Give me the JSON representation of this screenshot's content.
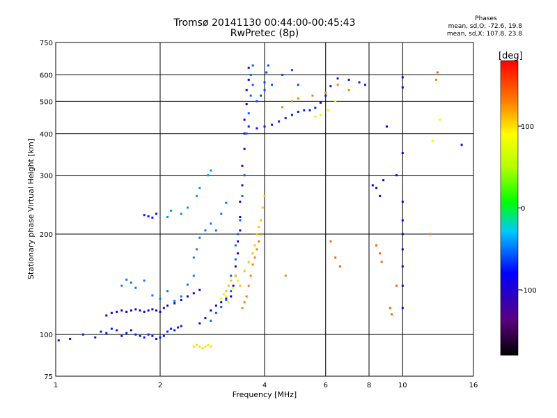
{
  "chart_data": {
    "type": "scatter",
    "title": "Tromsø 20141130 00:44:00-00:45:43",
    "subtitle": "RwPretec (8p)",
    "xlabel": "Frequency [MHz]",
    "ylabel": "Stationary phase Virtual Height [km]",
    "x_scale": "log",
    "y_scale": "log",
    "xlim": [
      1,
      16
    ],
    "ylim": [
      75,
      750
    ],
    "xticks": [
      1,
      2,
      4,
      6,
      8,
      10,
      16
    ],
    "yticks": [
      75,
      100,
      200,
      300,
      400,
      500,
      600,
      750
    ],
    "grid": true,
    "legend": {
      "title": "Phases",
      "lines": [
        "mean, sd,O: -72.6, 19.8",
        "mean, sd,X: 107.8, 23.8"
      ]
    },
    "colorbar": {
      "label": "[deg]",
      "range": [
        -180,
        180
      ],
      "ticks": [
        100,
        0,
        -100
      ],
      "colormap": "rainbow (black-purple-blue-cyan-green-yellow-red)"
    },
    "series": [
      {
        "color_value": -95,
        "points": [
          [
            1.02,
            96
          ],
          [
            1.1,
            97
          ],
          [
            1.2,
            100
          ],
          [
            1.3,
            98
          ],
          [
            1.35,
            102
          ],
          [
            1.4,
            101
          ],
          [
            1.45,
            104
          ],
          [
            1.5,
            103
          ],
          [
            1.55,
            99
          ],
          [
            1.6,
            101
          ],
          [
            1.65,
            103
          ],
          [
            1.7,
            100
          ],
          [
            1.75,
            99
          ],
          [
            1.8,
            98
          ],
          [
            1.85,
            100
          ],
          [
            1.9,
            99
          ],
          [
            1.95,
            97
          ],
          [
            2.0,
            98
          ],
          [
            2.05,
            99
          ],
          [
            2.1,
            102
          ],
          [
            2.15,
            104
          ],
          [
            2.2,
            103
          ],
          [
            2.25,
            105
          ],
          [
            2.3,
            106
          ]
        ]
      },
      {
        "color_value": -110,
        "points": [
          [
            1.4,
            114
          ],
          [
            1.45,
            116
          ],
          [
            1.5,
            117
          ],
          [
            1.55,
            118
          ],
          [
            1.6,
            117
          ],
          [
            1.65,
            118
          ],
          [
            1.7,
            119
          ],
          [
            1.75,
            118
          ],
          [
            1.8,
            117
          ],
          [
            1.85,
            118
          ],
          [
            1.9,
            119
          ],
          [
            1.95,
            118
          ],
          [
            2.0,
            117
          ],
          [
            2.05,
            120
          ],
          [
            2.1,
            122
          ],
          [
            2.2,
            124
          ],
          [
            2.3,
            127
          ],
          [
            2.4,
            130
          ],
          [
            2.5,
            133
          ],
          [
            2.6,
            136
          ]
        ]
      },
      {
        "color_value": -75,
        "points": [
          [
            1.55,
            140
          ],
          [
            1.6,
            146
          ],
          [
            1.65,
            143
          ],
          [
            1.7,
            138
          ],
          [
            1.8,
            145
          ],
          [
            1.9,
            131
          ],
          [
            2.0,
            128
          ],
          [
            2.1,
            135
          ],
          [
            2.2,
            126
          ],
          [
            2.3,
            130
          ],
          [
            2.4,
            141
          ],
          [
            2.5,
            150
          ],
          [
            2.5,
            170
          ],
          [
            2.55,
            180
          ],
          [
            2.6,
            195
          ],
          [
            2.7,
            205
          ],
          [
            2.8,
            215
          ],
          [
            2.9,
            205
          ],
          [
            3.0,
            230
          ],
          [
            3.1,
            248
          ]
        ]
      },
      {
        "color_value": -115,
        "points": [
          [
            2.6,
            108
          ],
          [
            2.7,
            112
          ],
          [
            2.8,
            118
          ],
          [
            2.9,
            122
          ],
          [
            3.0,
            125
          ],
          [
            3.1,
            128
          ],
          [
            3.2,
            130
          ],
          [
            3.25,
            140
          ],
          [
            3.3,
            150
          ],
          [
            3.3,
            160
          ],
          [
            3.35,
            175
          ],
          [
            3.35,
            190
          ],
          [
            3.4,
            205
          ],
          [
            3.4,
            225
          ],
          [
            3.4,
            250
          ],
          [
            3.45,
            280
          ],
          [
            3.45,
            320
          ],
          [
            3.5,
            360
          ],
          [
            3.5,
            400
          ],
          [
            3.5,
            440
          ],
          [
            3.55,
            490
          ],
          [
            3.55,
            540
          ],
          [
            3.6,
            580
          ],
          [
            3.6,
            630
          ]
        ]
      },
      {
        "color_value": -80,
        "points": [
          [
            2.8,
            110
          ],
          [
            2.9,
            116
          ],
          [
            3.0,
            121
          ],
          [
            3.1,
            127
          ],
          [
            3.2,
            135
          ],
          [
            3.2,
            150
          ],
          [
            3.3,
            168
          ],
          [
            3.3,
            185
          ],
          [
            3.35,
            200
          ],
          [
            3.4,
            220
          ],
          [
            3.45,
            260
          ],
          [
            3.5,
            300
          ],
          [
            3.55,
            400
          ],
          [
            3.6,
            460
          ],
          [
            3.65,
            520
          ],
          [
            3.7,
            560
          ],
          [
            3.65,
            600
          ],
          [
            3.7,
            640
          ]
        ]
      },
      {
        "color_value": -70,
        "points": [
          [
            2.3,
            230
          ],
          [
            2.4,
            240
          ],
          [
            2.55,
            260
          ],
          [
            2.6,
            275
          ],
          [
            2.75,
            300
          ],
          [
            2.8,
            310
          ],
          [
            2.1,
            225
          ],
          [
            2.15,
            235
          ]
        ]
      },
      {
        "color_value": -95,
        "points": [
          [
            1.8,
            228
          ],
          [
            1.85,
            226
          ],
          [
            1.9,
            224
          ],
          [
            1.95,
            230
          ],
          [
            3.6,
            420
          ],
          [
            3.8,
            415
          ],
          [
            4.0,
            420
          ],
          [
            4.2,
            425
          ],
          [
            4.4,
            435
          ],
          [
            4.6,
            445
          ],
          [
            4.8,
            455
          ],
          [
            5.0,
            465
          ],
          [
            5.2,
            470
          ],
          [
            5.4,
            470
          ],
          [
            5.6,
            478
          ],
          [
            5.8,
            495
          ],
          [
            6.0,
            520
          ],
          [
            6.2,
            555
          ],
          [
            6.5,
            585
          ],
          [
            7.0,
            580
          ],
          [
            7.5,
            570
          ],
          [
            7.8,
            560
          ]
        ]
      },
      {
        "color_value": -85,
        "points": [
          [
            3.8,
            500
          ],
          [
            3.9,
            520
          ],
          [
            4.0,
            540
          ],
          [
            4.0,
            570
          ],
          [
            4.05,
            610
          ],
          [
            4.1,
            640
          ],
          [
            4.2,
            560
          ],
          [
            4.5,
            600
          ],
          [
            4.8,
            620
          ],
          [
            5.0,
            560
          ]
        ]
      },
      {
        "color_value": 110,
        "points": [
          [
            2.5,
            92
          ],
          [
            2.55,
            93
          ],
          [
            2.6,
            92
          ],
          [
            2.65,
            91
          ],
          [
            2.7,
            92
          ],
          [
            2.75,
            93
          ],
          [
            2.8,
            92
          ]
        ]
      },
      {
        "color_value": 120,
        "points": [
          [
            3.1,
            135
          ],
          [
            3.15,
            140
          ],
          [
            3.2,
            145
          ],
          [
            3.3,
            150
          ],
          [
            3.4,
            140
          ],
          [
            3.5,
            155
          ],
          [
            3.6,
            165
          ],
          [
            3.7,
            175
          ],
          [
            3.75,
            185
          ],
          [
            3.8,
            200
          ],
          [
            3.85,
            210
          ],
          [
            3.9,
            220
          ],
          [
            3.95,
            240
          ],
          [
            4.0,
            260
          ]
        ]
      },
      {
        "color_value": 140,
        "points": [
          [
            3.45,
            120
          ],
          [
            3.5,
            125
          ],
          [
            3.55,
            130
          ],
          [
            3.6,
            140
          ],
          [
            3.65,
            150
          ],
          [
            3.7,
            162
          ],
          [
            3.75,
            170
          ],
          [
            3.8,
            180
          ],
          [
            3.85,
            190
          ],
          [
            3.9,
            200
          ],
          [
            4.6,
            150
          ],
          [
            4.5,
            480
          ],
          [
            4.8,
            500
          ],
          [
            5.0,
            510
          ],
          [
            5.5,
            520
          ],
          [
            6.0,
            530
          ],
          [
            6.5,
            560
          ],
          [
            7.0,
            540
          ],
          [
            12.0,
            200
          ],
          [
            12.5,
            580
          ]
        ]
      },
      {
        "color_value": 85,
        "points": [
          [
            3.0,
            128
          ],
          [
            3.05,
            132
          ],
          [
            3.1,
            130
          ],
          [
            3.15,
            125
          ],
          [
            3.25,
            138
          ],
          [
            3.35,
            145
          ],
          [
            5.6,
            450
          ],
          [
            5.8,
            455
          ],
          [
            6.1,
            470
          ],
          [
            6.4,
            500
          ],
          [
            12.2,
            380
          ],
          [
            12.8,
            440
          ]
        ]
      },
      {
        "color_value": -105,
        "points": [
          [
            8.2,
            280
          ],
          [
            8.4,
            275
          ],
          [
            8.6,
            260
          ],
          [
            8.8,
            290
          ],
          [
            9.6,
            300
          ],
          [
            10.0,
            350
          ],
          [
            10.0,
            250
          ],
          [
            10.0,
            220
          ],
          [
            10.0,
            200
          ],
          [
            10.0,
            180
          ],
          [
            10.0,
            160
          ],
          [
            10.0,
            140
          ],
          [
            10.0,
            120
          ],
          [
            10.0,
            590
          ],
          [
            10.0,
            550
          ],
          [
            9.0,
            420
          ],
          [
            14.8,
            370
          ]
        ]
      },
      {
        "color_value": 150,
        "points": [
          [
            6.2,
            190
          ],
          [
            6.4,
            170
          ],
          [
            6.6,
            160
          ],
          [
            8.4,
            185
          ],
          [
            8.6,
            175
          ],
          [
            8.7,
            165
          ],
          [
            9.2,
            120
          ],
          [
            9.3,
            115
          ],
          [
            9.6,
            140
          ],
          [
            12.6,
            610
          ]
        ]
      }
    ]
  }
}
